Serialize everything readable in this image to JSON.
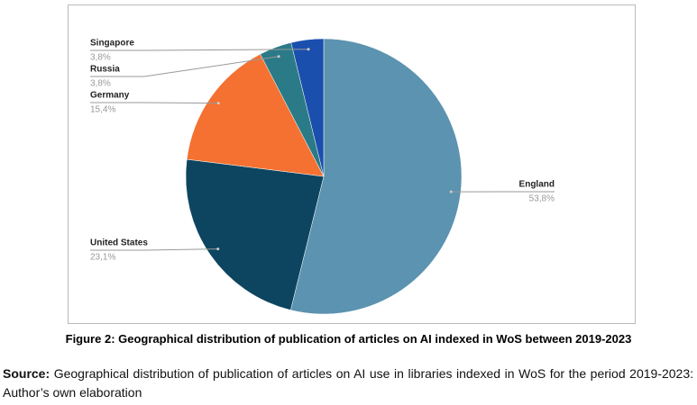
{
  "chart_data": {
    "type": "pie",
    "categories": [
      "England",
      "United States",
      "Germany",
      "Russia",
      "Singapore"
    ],
    "values": [
      53.8,
      23.1,
      15.4,
      3.8,
      3.8
    ],
    "value_labels": [
      "53,8%",
      "23,1%",
      "15,4%",
      "3,8%",
      "3,8%"
    ],
    "colors": [
      "#5b93b0",
      "#0d4560",
      "#f47132",
      "#2b7a87",
      "#1a4fae"
    ]
  },
  "figure_caption": "Figure 2: Geographical distribution of publication of articles on AI indexed in WoS between 2019-2023",
  "source": {
    "label": "Source:",
    "text": "Geographical distribution of publication of articles on AI use in libraries indexed in WoS for the period 2019-2023: Author’s own elaboration"
  }
}
